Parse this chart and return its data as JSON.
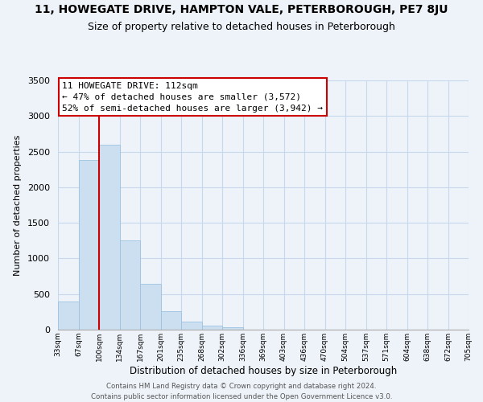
{
  "title": "11, HOWEGATE DRIVE, HAMPTON VALE, PETERBOROUGH, PE7 8JU",
  "subtitle": "Size of property relative to detached houses in Peterborough",
  "xlabel": "Distribution of detached houses by size in Peterborough",
  "ylabel": "Number of detached properties",
  "bar_values": [
    390,
    2380,
    2600,
    1250,
    640,
    260,
    110,
    55,
    30,
    0,
    0,
    0,
    0,
    0,
    0,
    0,
    0,
    0,
    0,
    0
  ],
  "bar_labels": [
    "33sqm",
    "67sqm",
    "100sqm",
    "134sqm",
    "167sqm",
    "201sqm",
    "235sqm",
    "268sqm",
    "302sqm",
    "336sqm",
    "369sqm",
    "403sqm",
    "436sqm",
    "470sqm",
    "504sqm",
    "537sqm",
    "571sqm",
    "604sqm",
    "638sqm",
    "672sqm",
    "705sqm"
  ],
  "bar_color": "#ccdff0",
  "bar_edge_color": "#9dc3e0",
  "vline_color": "#cc0000",
  "vline_position": 1.5,
  "ylim": [
    0,
    3500
  ],
  "yticks": [
    0,
    500,
    1000,
    1500,
    2000,
    2500,
    3000,
    3500
  ],
  "annotation_title": "11 HOWEGATE DRIVE: 112sqm",
  "annotation_line1": "← 47% of detached houses are smaller (3,572)",
  "annotation_line2": "52% of semi-detached houses are larger (3,942) →",
  "annotation_box_color": "#ffffff",
  "annotation_box_edge": "#cc0000",
  "footer_line1": "Contains HM Land Registry data © Crown copyright and database right 2024.",
  "footer_line2": "Contains public sector information licensed under the Open Government Licence v3.0.",
  "background_color": "#eef3f9",
  "grid_color": "#c8d8ec",
  "title_fontsize": 10,
  "subtitle_fontsize": 9
}
